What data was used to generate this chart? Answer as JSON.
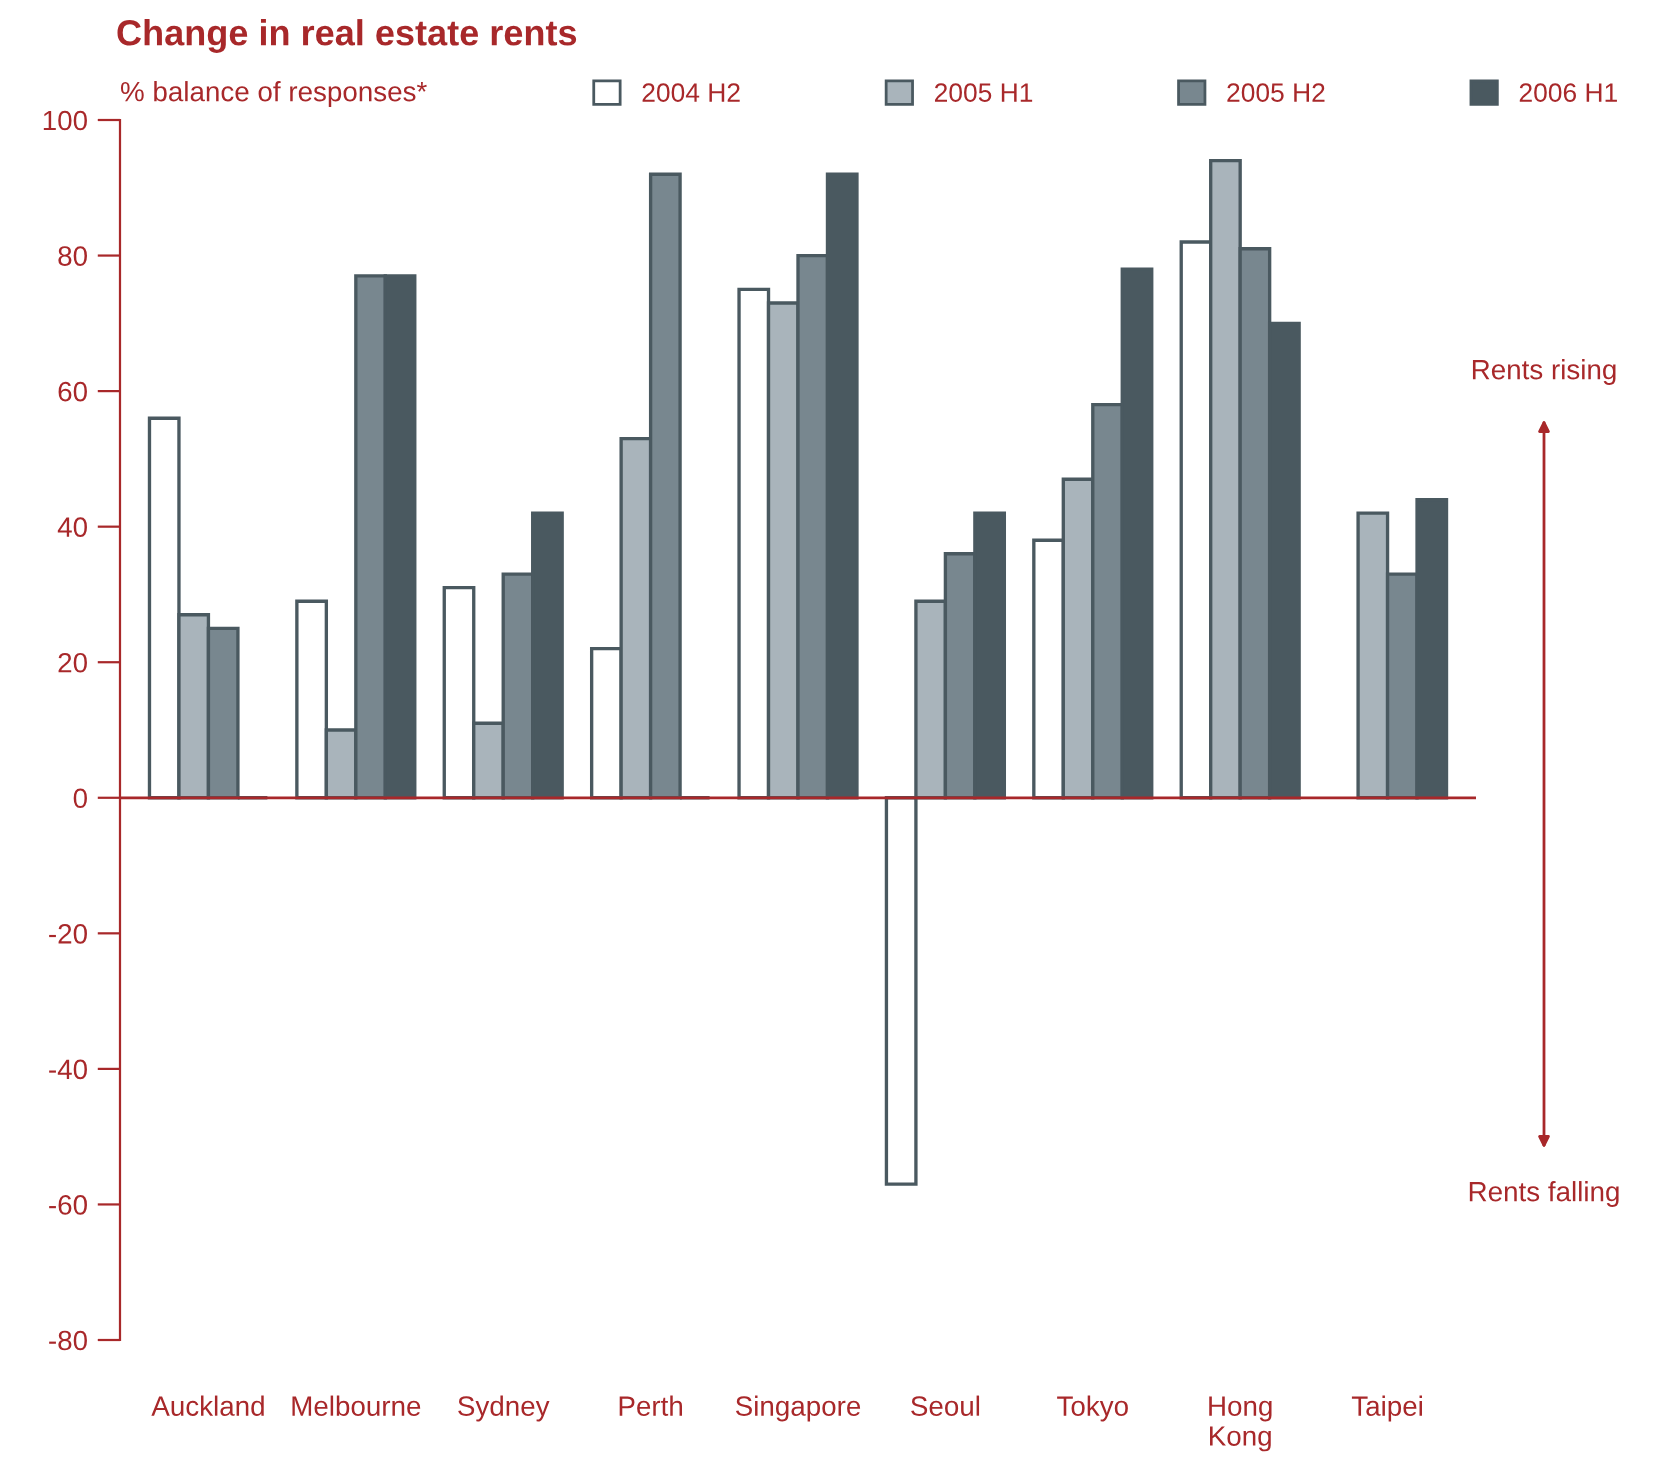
{
  "chart_data": {
    "type": "bar",
    "title": "Change in real estate rents",
    "ylabel": "% balance of responses*",
    "categories": [
      "Auckland",
      "Melbourne",
      "Sydney",
      "Perth",
      "Singapore",
      "Seoul",
      "Tokyo",
      "Hong\nKong",
      "Taipei"
    ],
    "series": [
      {
        "name": "2004 H2",
        "color": "#ffffff",
        "values": [
          56,
          29,
          31,
          22,
          75,
          -57,
          38,
          82,
          0
        ]
      },
      {
        "name": "2005 H1",
        "color": "#a9b4bb",
        "values": [
          27,
          10,
          11,
          53,
          73,
          29,
          47,
          94,
          42
        ]
      },
      {
        "name": "2005 H2",
        "color": "#78878f",
        "values": [
          25,
          77,
          33,
          92,
          80,
          36,
          58,
          81,
          33
        ]
      },
      {
        "name": "2006 H1",
        "color": "#4a5960",
        "values": [
          0,
          77,
          42,
          0,
          92,
          42,
          78,
          70,
          44
        ]
      }
    ],
    "ylim": [
      -80,
      100
    ],
    "yticks": [
      -80,
      -60,
      -40,
      -20,
      0,
      20,
      40,
      60,
      80,
      100
    ],
    "ref_lines": [
      {
        "axis": "y",
        "value": 0,
        "color": "#a8282a"
      }
    ],
    "annotations": [
      "Rents rising",
      "Rents falling"
    ],
    "legend": "top",
    "grid": false
  }
}
